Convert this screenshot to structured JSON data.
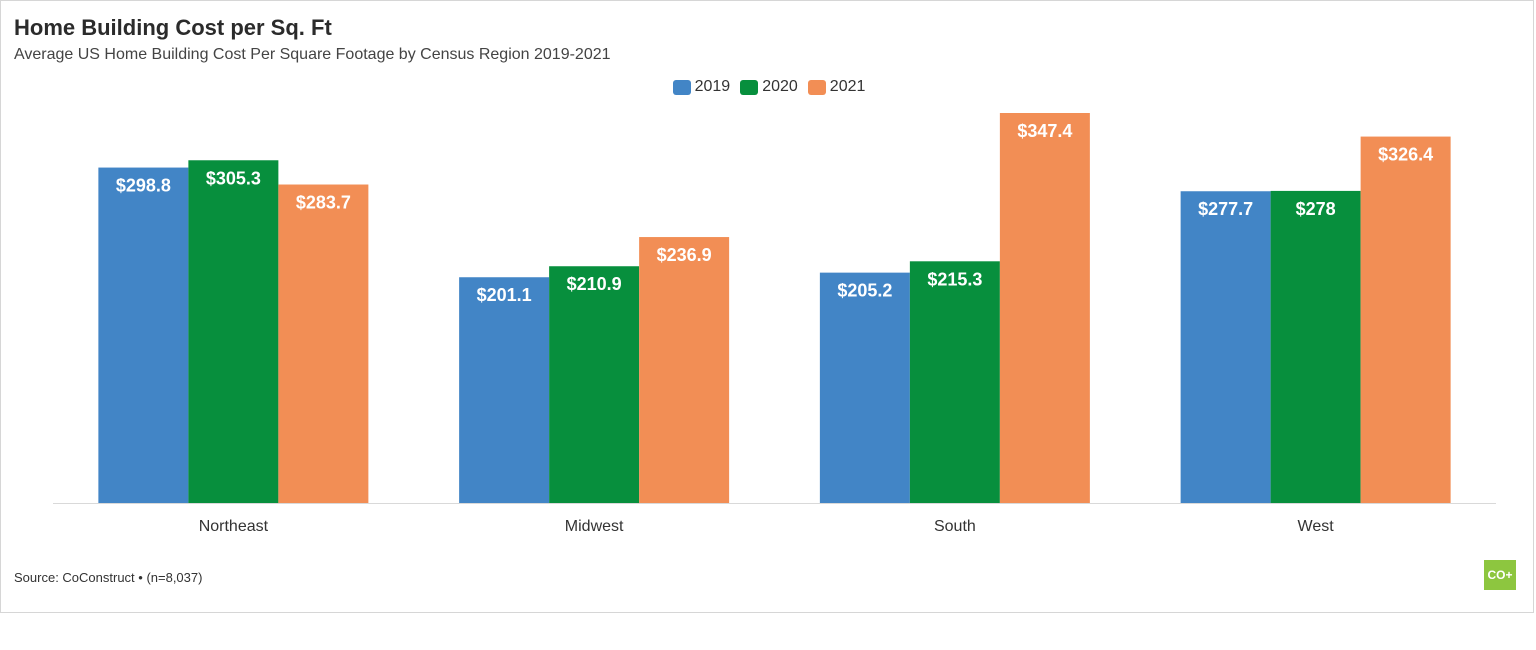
{
  "title": "Home Building Cost per Sq. Ft",
  "subtitle": "Average US Home Building Cost Per Square Footage by Census Region 2019-2021",
  "source": "Source: CoConstruct • (n=8,037)",
  "logo_text": "co+",
  "colors": {
    "2019": "#4285c6",
    "2020": "#078f3d",
    "2021": "#f28e55"
  },
  "chart_data": {
    "type": "bar",
    "categories": [
      "Northeast",
      "Midwest",
      "South",
      "West"
    ],
    "series": [
      {
        "name": "2019",
        "values": [
          298.8,
          201.1,
          205.2,
          277.7
        ],
        "labels": [
          "$298.8",
          "$201.1",
          "$205.2",
          "$277.7"
        ]
      },
      {
        "name": "2020",
        "values": [
          305.3,
          210.9,
          215.3,
          278
        ],
        "labels": [
          "$305.3",
          "$210.9",
          "$215.3",
          "$278"
        ]
      },
      {
        "name": "2021",
        "values": [
          283.7,
          236.9,
          347.4,
          326.4
        ],
        "labels": [
          "$283.7",
          "$236.9",
          "$347.4",
          "$326.4"
        ]
      }
    ],
    "ylim": [
      0,
      347.4
    ],
    "legend": "top-center",
    "grid": false
  }
}
